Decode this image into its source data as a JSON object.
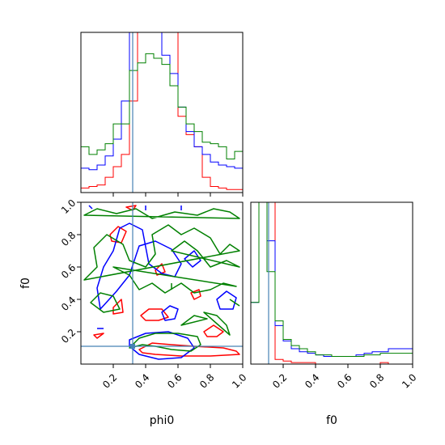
{
  "chart_data": [
    {
      "type": "histogram",
      "panel": "phi0 marginal",
      "xlim": [
        0,
        1
      ],
      "truth": 0.32,
      "show_x_tick_labels": false,
      "series": [
        {
          "name": "",
          "color": "#ff0000",
          "bin_width": 0.05,
          "values": [
            0.03,
            0.04,
            0.05,
            0.1,
            0.17,
            0.25,
            0.6,
            1.3,
            1.3,
            1.3,
            1.3,
            1.3,
            0.5,
            0.38,
            0.3,
            0.1,
            0.04,
            0.03,
            0.02,
            0.02
          ]
        },
        {
          "name": "",
          "color": "#0000ff",
          "bin_width": 0.05,
          "values": [
            0.16,
            0.15,
            0.18,
            0.24,
            0.35,
            0.6,
            1.3,
            1.3,
            1.3,
            1.3,
            0.9,
            0.78,
            0.56,
            0.4,
            0.3,
            0.25,
            0.2,
            0.18,
            0.17,
            0.16
          ]
        },
        {
          "name": "",
          "color": "#008000",
          "bin_width": 0.05,
          "values": [
            0.3,
            0.25,
            0.28,
            0.32,
            0.45,
            0.45,
            0.8,
            0.85,
            0.91,
            0.88,
            0.84,
            0.7,
            0.56,
            0.45,
            0.4,
            0.33,
            0.32,
            0.3,
            0.22,
            0.27
          ]
        }
      ]
    },
    {
      "type": "contour",
      "panel": "phi0 vs f0",
      "xlabel": "phi0",
      "ylabel": "f0",
      "xlim": [
        0,
        1
      ],
      "ylim": [
        0,
        1
      ],
      "xticks": [
        0.2,
        0.4,
        0.6,
        0.8,
        1.0
      ],
      "yticks": [
        0.2,
        0.4,
        0.6,
        0.8,
        1.0
      ],
      "xticklabels": [
        "0.2",
        "0.4",
        "0.6",
        "0.8",
        "1.0"
      ],
      "yticklabels": [
        "0.2",
        "0.4",
        "0.6",
        "0.8",
        "1.0"
      ],
      "truth": {
        "x": 0.32,
        "y": 0.11
      },
      "series": [
        {
          "name": "",
          "color": "#ff0000",
          "contours": [
            [
              [
                0.36,
                0.09
              ],
              [
                0.44,
                0.13
              ],
              [
                0.56,
                0.12
              ],
              [
                0.7,
                0.11
              ],
              [
                0.88,
                0.1
              ],
              [
                0.96,
                0.08
              ],
              [
                0.98,
                0.06
              ],
              [
                0.8,
                0.05
              ],
              [
                0.62,
                0.05
              ],
              [
                0.46,
                0.06
              ],
              [
                0.38,
                0.07
              ]
            ],
            [
              [
                0.18,
                0.8
              ],
              [
                0.23,
                0.85
              ],
              [
                0.28,
                0.82
              ],
              [
                0.25,
                0.75
              ],
              [
                0.19,
                0.76
              ]
            ],
            [
              [
                0.37,
                0.3
              ],
              [
                0.42,
                0.34
              ],
              [
                0.5,
                0.34
              ],
              [
                0.54,
                0.29
              ],
              [
                0.48,
                0.27
              ],
              [
                0.4,
                0.27
              ]
            ],
            [
              [
                0.2,
                0.35
              ],
              [
                0.25,
                0.4
              ],
              [
                0.26,
                0.32
              ],
              [
                0.2,
                0.31
              ]
            ],
            [
              [
                0.46,
                0.58
              ],
              [
                0.5,
                0.62
              ],
              [
                0.52,
                0.57
              ],
              [
                0.47,
                0.55
              ]
            ],
            [
              [
                0.68,
                0.44
              ],
              [
                0.73,
                0.46
              ],
              [
                0.74,
                0.42
              ],
              [
                0.7,
                0.4
              ]
            ],
            [
              [
                0.76,
                0.2
              ],
              [
                0.82,
                0.24
              ],
              [
                0.88,
                0.2
              ],
              [
                0.84,
                0.17
              ],
              [
                0.78,
                0.17
              ]
            ],
            [
              [
                0.08,
                0.18
              ],
              [
                0.14,
                0.19
              ],
              [
                0.1,
                0.16
              ]
            ],
            [
              [
                0.28,
                0.97
              ],
              [
                0.34,
                0.98
              ],
              [
                0.32,
                0.95
              ]
            ]
          ]
        },
        {
          "name": "",
          "color": "#0000ff",
          "contours": [
            [
              [
                0.3,
                0.15
              ],
              [
                0.4,
                0.19
              ],
              [
                0.54,
                0.2
              ],
              [
                0.66,
                0.16
              ],
              [
                0.7,
                0.1
              ],
              [
                0.62,
                0.04
              ],
              [
                0.48,
                0.03
              ],
              [
                0.36,
                0.06
              ],
              [
                0.3,
                0.11
              ]
            ],
            [
              [
                0.24,
                0.84
              ],
              [
                0.2,
                0.7
              ],
              [
                0.14,
                0.6
              ],
              [
                0.1,
                0.47
              ],
              [
                0.12,
                0.34
              ],
              [
                0.22,
                0.45
              ],
              [
                0.3,
                0.55
              ],
              [
                0.36,
                0.73
              ],
              [
                0.46,
                0.76
              ],
              [
                0.56,
                0.71
              ],
              [
                0.62,
                0.62
              ],
              [
                0.58,
                0.54
              ],
              [
                0.5,
                0.56
              ],
              [
                0.42,
                0.62
              ],
              [
                0.38,
                0.83
              ],
              [
                0.3,
                0.87
              ]
            ],
            [
              [
                0.84,
                0.4
              ],
              [
                0.9,
                0.45
              ],
              [
                0.96,
                0.41
              ],
              [
                0.94,
                0.34
              ],
              [
                0.86,
                0.34
              ]
            ],
            [
              [
                0.5,
                0.32
              ],
              [
                0.55,
                0.36
              ],
              [
                0.6,
                0.34
              ],
              [
                0.58,
                0.28
              ],
              [
                0.52,
                0.27
              ]
            ],
            [
              [
                0.64,
                0.65
              ],
              [
                0.7,
                0.7
              ],
              [
                0.74,
                0.64
              ],
              [
                0.69,
                0.6
              ]
            ],
            [
              [
                0.05,
                0.98
              ],
              [
                0.07,
                0.96
              ]
            ],
            [
              [
                0.4,
                0.98
              ],
              [
                0.4,
                0.95
              ]
            ],
            [
              [
                0.62,
                0.98
              ],
              [
                0.62,
                0.95
              ]
            ],
            [
              [
                0.1,
                0.22
              ],
              [
                0.14,
                0.22
              ]
            ]
          ]
        },
        {
          "name": "",
          "color": "#008000",
          "contours": [
            [
              [
                0.3,
                0.1
              ],
              [
                0.36,
                0.16
              ],
              [
                0.46,
                0.19
              ],
              [
                0.6,
                0.19
              ],
              [
                0.72,
                0.17
              ],
              [
                0.74,
                0.12
              ],
              [
                0.68,
                0.08
              ],
              [
                0.56,
                0.09
              ],
              [
                0.46,
                0.11
              ],
              [
                0.38,
                0.12
              ]
            ],
            [
              [
                0.02,
                0.92
              ],
              [
                0.1,
                0.96
              ],
              [
                0.22,
                0.93
              ],
              [
                0.34,
                0.96
              ],
              [
                0.44,
                0.9
              ],
              [
                0.58,
                0.94
              ],
              [
                0.72,
                0.92
              ],
              [
                0.82,
                0.96
              ],
              [
                0.92,
                0.94
              ],
              [
                0.98,
                0.9
              ]
            ],
            [
              [
                0.02,
                0.52
              ],
              [
                0.1,
                0.6
              ],
              [
                0.08,
                0.72
              ],
              [
                0.16,
                0.8
              ],
              [
                0.26,
                0.74
              ],
              [
                0.3,
                0.64
              ],
              [
                0.4,
                0.6
              ],
              [
                0.46,
                0.68
              ],
              [
                0.44,
                0.8
              ],
              [
                0.54,
                0.86
              ],
              [
                0.62,
                0.8
              ],
              [
                0.7,
                0.84
              ],
              [
                0.8,
                0.78
              ],
              [
                0.86,
                0.68
              ],
              [
                0.92,
                0.74
              ],
              [
                0.98,
                0.7
              ]
            ],
            [
              [
                0.56,
                0.7
              ],
              [
                0.64,
                0.76
              ],
              [
                0.72,
                0.7
              ],
              [
                0.8,
                0.6
              ],
              [
                0.9,
                0.64
              ],
              [
                0.98,
                0.6
              ]
            ],
            [
              [
                0.2,
                0.6
              ],
              [
                0.3,
                0.55
              ],
              [
                0.36,
                0.46
              ],
              [
                0.44,
                0.5
              ],
              [
                0.52,
                0.44
              ],
              [
                0.62,
                0.5
              ],
              [
                0.7,
                0.44
              ],
              [
                0.8,
                0.46
              ],
              [
                0.88,
                0.5
              ],
              [
                0.96,
                0.48
              ]
            ],
            [
              [
                0.06,
                0.38
              ],
              [
                0.14,
                0.32
              ],
              [
                0.24,
                0.34
              ],
              [
                0.2,
                0.42
              ],
              [
                0.12,
                0.44
              ]
            ],
            [
              [
                0.76,
                0.32
              ],
              [
                0.84,
                0.3
              ],
              [
                0.9,
                0.24
              ],
              [
                0.92,
                0.18
              ]
            ],
            [
              [
                0.62,
                0.24
              ],
              [
                0.7,
                0.3
              ],
              [
                0.78,
                0.28
              ]
            ],
            [
              [
                0.56,
                0.5
              ],
              [
                0.56,
                0.46
              ]
            ],
            [
              [
                0.98,
                0.36
              ],
              [
                0.92,
                0.4
              ]
            ]
          ]
        }
      ]
    },
    {
      "type": "histogram",
      "panel": "f0 marginal",
      "xlabel": "f0",
      "xlim": [
        0,
        1
      ],
      "xticks": [
        0.2,
        0.4,
        0.6,
        0.8,
        1.0
      ],
      "xticklabels": [
        "0.2",
        "0.4",
        "0.6",
        "0.8",
        "1.0"
      ],
      "truth": 0.11,
      "series": [
        {
          "name": "",
          "color": "#ff0000",
          "bin_width": 0.05,
          "values": [
            1.3,
            1.3,
            1.3,
            0.03,
            0.02,
            0.01,
            0.01,
            0.01,
            0.0,
            0.0,
            0.0,
            0.0,
            0.0,
            0.0,
            0.0,
            0.0,
            0.01,
            0.0,
            0.0,
            0.0
          ]
        },
        {
          "name": "",
          "color": "#0000ff",
          "bin_width": 0.05,
          "values": [
            0.4,
            1.3,
            0.8,
            0.25,
            0.15,
            0.1,
            0.08,
            0.07,
            0.06,
            0.05,
            0.05,
            0.05,
            0.05,
            0.06,
            0.07,
            0.08,
            0.08,
            0.1,
            0.1,
            0.1
          ]
        },
        {
          "name": "",
          "color": "#008000",
          "bin_width": 0.05,
          "values": [
            0.4,
            1.1,
            0.6,
            0.28,
            0.16,
            0.12,
            0.1,
            0.08,
            0.06,
            0.06,
            0.05,
            0.05,
            0.05,
            0.05,
            0.06,
            0.06,
            0.07,
            0.07,
            0.07,
            0.07
          ]
        }
      ]
    }
  ]
}
